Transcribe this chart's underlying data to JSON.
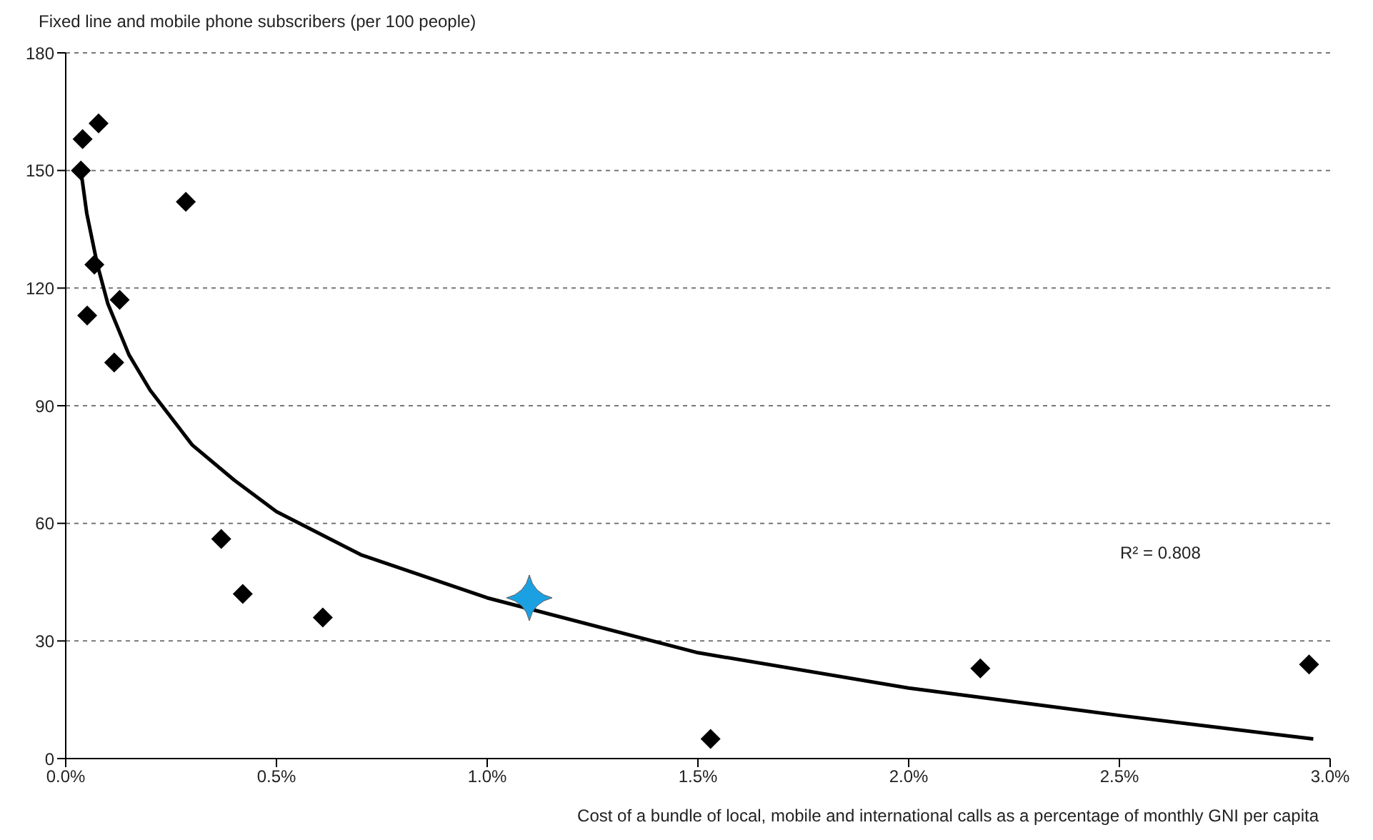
{
  "chart_data": {
    "type": "scatter",
    "ylabel": "Fixed line and mobile phone subscribers (per 100 people)",
    "xlabel": "Cost of a bundle of local, mobile and international calls as a percentage of monthly GNI per capita",
    "xlim": [
      0,
      3
    ],
    "xticks": [
      {
        "value": 0,
        "label": "0.0%"
      },
      {
        "value": 0.5,
        "label": "0.5%"
      },
      {
        "value": 1,
        "label": "1.0%"
      },
      {
        "value": 1.5,
        "label": "1.5%"
      },
      {
        "value": 2,
        "label": "2.0%"
      },
      {
        "value": 2.5,
        "label": "2.5%"
      },
      {
        "value": 3,
        "label": "3.0%"
      }
    ],
    "ylim": [
      0,
      180
    ],
    "yticks": [
      0,
      30,
      60,
      90,
      120,
      150,
      180
    ],
    "grid": "y",
    "annotations": [
      "R² = 0.808"
    ],
    "series": [
      {
        "marker": "diamond",
        "color": "#000000",
        "x": [
          0.036,
          0.04,
          0.078,
          0.068,
          0.051,
          0.128,
          0.115,
          0.285,
          0.369,
          0.42,
          0.61,
          1.53,
          2.17,
          2.95
        ],
        "values": [
          150,
          158,
          162,
          126,
          113,
          117,
          101,
          142,
          56,
          42,
          36,
          5,
          23,
          24
        ]
      },
      {
        "marker": "star",
        "color": "#1ba1e2",
        "x": [
          1.1
        ],
        "values": [
          41
        ]
      },
      {
        "type": "line",
        "marker": "none",
        "line_style": "solid",
        "color": "#000000",
        "x": [
          0.036,
          0.05,
          0.075,
          0.1,
          0.15,
          0.2,
          0.3,
          0.4,
          0.5,
          0.7,
          1,
          1.5,
          2,
          2.5,
          2.96
        ],
        "values": [
          150,
          139,
          126,
          116,
          103,
          94,
          80,
          71,
          63,
          52,
          41,
          27,
          18,
          11,
          5
        ]
      }
    ]
  }
}
